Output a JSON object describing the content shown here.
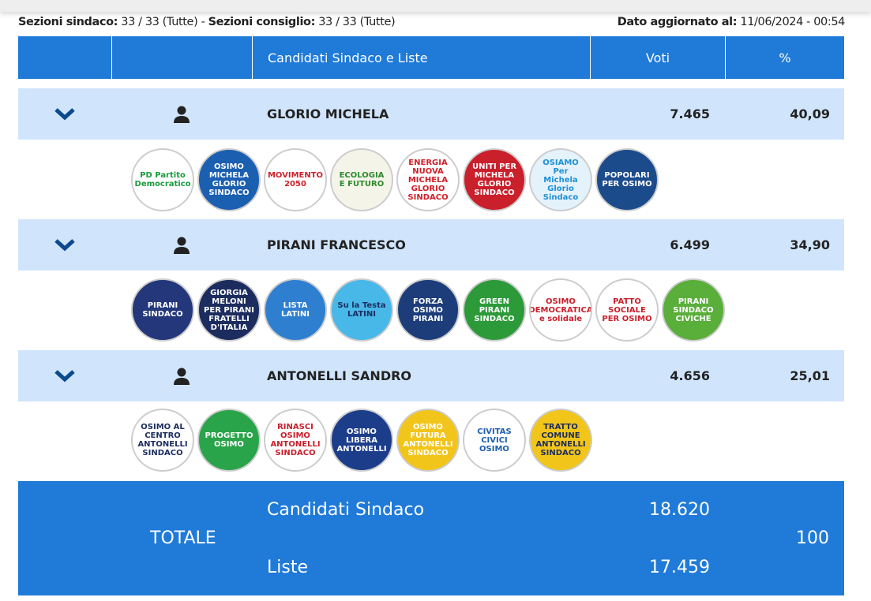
{
  "info": {
    "sezioni_sindaco_label": "Sezioni sindaco:",
    "sezioni_sindaco_value": "33 / 33 (Tutte)",
    "separator": "-",
    "sezioni_consiglio_label": "Sezioni consiglio:",
    "sezioni_consiglio_value": "33 / 33 (Tutte)",
    "updated_label": "Dato aggiornato al:",
    "updated_value": "11/06/2024 - 00:54"
  },
  "header": {
    "candidates": "Candidati Sindaco e Liste",
    "votes": "Voti",
    "percent": "%"
  },
  "colors": {
    "header": "#1f7ad8",
    "candidate_row": "#d0e5fc",
    "chevron": "#0b4a8c"
  },
  "candidates": [
    {
      "name": "GLORIO MICHELA",
      "votes": "7.465",
      "percent": "40,09",
      "logos": [
        {
          "text": "PD Partito Democratico",
          "bg": "#ffffff",
          "fg": "#1a9b3c"
        },
        {
          "text": "OSIMO MICHELA GLORIO SINDACO",
          "bg": "#1b5fb0",
          "fg": "#ffffff"
        },
        {
          "text": "MOVIMENTO 2050",
          "bg": "#ffffff",
          "fg": "#d0202a"
        },
        {
          "text": "ECOLOGIA E FUTURO",
          "bg": "#f4f4e8",
          "fg": "#2d8a2d"
        },
        {
          "text": "ENERGIA NUOVA MICHELA GLORIO SINDACO",
          "bg": "#ffffff",
          "fg": "#d0202a"
        },
        {
          "text": "UNITI PER MICHELA GLORIO SINDACO",
          "bg": "#c9202c",
          "fg": "#ffffff"
        },
        {
          "text": "OSIAMO Per Michela Glorio Sindaco",
          "bg": "#e4f2fb",
          "fg": "#1e90d6"
        },
        {
          "text": "POPOLARI PER OSIMO",
          "bg": "#1c4b8c",
          "fg": "#ffffff"
        }
      ]
    },
    {
      "name": "PIRANI FRANCESCO",
      "votes": "6.499",
      "percent": "34,90",
      "logos": [
        {
          "text": "PIRANI SINDACO",
          "bg": "#24377a",
          "fg": "#ffffff"
        },
        {
          "text": "GIORGIA MELONI PER PIRANI FRATELLI D'ITALIA",
          "bg": "#1c2c5e",
          "fg": "#ffffff"
        },
        {
          "text": "LISTA LATINI",
          "bg": "#2f7fd0",
          "fg": "#ffffff"
        },
        {
          "text": "Su la Testa LATINI",
          "bg": "#48b8e8",
          "fg": "#1c2c5e"
        },
        {
          "text": "FORZA OSIMO PIRANI",
          "bg": "#1c3d7a",
          "fg": "#ffffff"
        },
        {
          "text": "GREEN PIRANI SINDACO",
          "bg": "#2d9a3a",
          "fg": "#ffffff"
        },
        {
          "text": "OSIMO DEMOCRATICA e solidale",
          "bg": "#ffffff",
          "fg": "#c9202c"
        },
        {
          "text": "PATTO SOCIALE PER OSIMO",
          "bg": "#ffffff",
          "fg": "#c9202c"
        },
        {
          "text": "PIRANI SINDACO CIVICHE",
          "bg": "#5aae3a",
          "fg": "#ffffff"
        }
      ]
    },
    {
      "name": "ANTONELLI SANDRO",
      "votes": "4.656",
      "percent": "25,01",
      "logos": [
        {
          "text": "OSIMO AL CENTRO ANTONELLI SINDACO",
          "bg": "#ffffff",
          "fg": "#1c2c5e"
        },
        {
          "text": "PROGETTO OSIMO",
          "bg": "#2aa44a",
          "fg": "#ffffff"
        },
        {
          "text": "RINASCI OSIMO ANTONELLI SINDACO",
          "bg": "#ffffff",
          "fg": "#c9202c"
        },
        {
          "text": "OSIMO LIBERA ANTONELLI",
          "bg": "#1c3d8a",
          "fg": "#ffffff"
        },
        {
          "text": "OSIMO FUTURA ANTONELLI SINDACO",
          "bg": "#f2c51a",
          "fg": "#ffffff"
        },
        {
          "text": "CIVITAS CIVICI OSIMO",
          "bg": "#ffffff",
          "fg": "#1c5fb0"
        },
        {
          "text": "TRATTO COMUNE ANTONELLI SINDACO",
          "bg": "#f2c51a",
          "fg": "#1c2c5e"
        }
      ]
    }
  ],
  "total": {
    "label": "TOTALE",
    "candidates_label": "Candidati Sindaco",
    "candidates_votes": "18.620",
    "lists_label": "Liste",
    "lists_votes": "17.459",
    "percent": "100"
  }
}
